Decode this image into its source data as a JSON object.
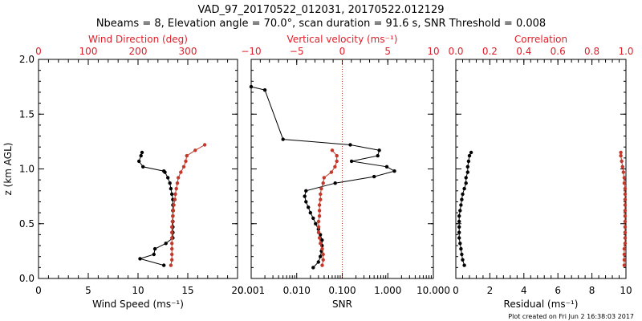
{
  "title_line1": "VAD_97_20170522_012031, 20170522.012129",
  "title_line2": "Nbeams = 8, Elevation angle = 70.0°, scan duration = 91.6 s, SNR Threshold = 0.008",
  "footer": "Plot created on Fri Jun  2 16:38:03 2017",
  "colors": {
    "black": "#000000",
    "red": "#c0392b",
    "red_text": "#e0202a",
    "zero_line": "#c0392b"
  },
  "chart_data": [
    {
      "type": "line",
      "panel": "left",
      "ylabel": "z (km AGL)",
      "ylim": [
        0,
        2
      ],
      "ytick_labels": [
        "0.0",
        "0.5",
        "1.0",
        "1.5",
        "2.0"
      ],
      "bottom_axis": {
        "label": "Wind Speed (ms⁻¹)",
        "lim": [
          0,
          20
        ],
        "tick_labels": [
          "0",
          "5",
          "10",
          "15",
          "20"
        ]
      },
      "top_axis": {
        "label": "Wind Direction (deg)",
        "lim": [
          0,
          400
        ],
        "tick_labels": [
          "0",
          "100",
          "200",
          "300"
        ]
      },
      "series": [
        {
          "axis": "bottom",
          "color": "black",
          "x": [
            12.6,
            10.2,
            11.6,
            11.7,
            12.8,
            13.5,
            13.5,
            13.5,
            13.5,
            13.5,
            13.5,
            13.5,
            13.5,
            13.4,
            13.3,
            13.2,
            13.0,
            12.7,
            12.6,
            10.5,
            10.1,
            10.3,
            10.4
          ],
          "y": [
            0.12,
            0.18,
            0.22,
            0.27,
            0.32,
            0.37,
            0.42,
            0.47,
            0.52,
            0.57,
            0.62,
            0.67,
            0.72,
            0.77,
            0.82,
            0.87,
            0.92,
            0.97,
            0.98,
            1.02,
            1.07,
            1.12,
            1.15
          ]
        },
        {
          "axis": "top",
          "color": "red",
          "x": [
            266,
            268,
            268,
            268,
            268,
            268,
            268,
            268,
            269,
            270,
            271,
            272,
            274,
            275,
            277,
            279,
            281,
            286,
            292,
            296,
            298,
            315,
            334
          ],
          "y": [
            0.12,
            0.17,
            0.22,
            0.27,
            0.32,
            0.37,
            0.42,
            0.47,
            0.52,
            0.57,
            0.62,
            0.67,
            0.72,
            0.77,
            0.82,
            0.87,
            0.92,
            0.97,
            1.02,
            1.07,
            1.12,
            1.17,
            1.22
          ]
        }
      ]
    },
    {
      "type": "line",
      "panel": "middle",
      "ylim": [
        0,
        2
      ],
      "bottom_axis": {
        "label": "SNR",
        "lim": [
          0.001,
          10
        ],
        "scale": "log",
        "tick_labels": [
          "0.001",
          "0.010",
          "0.100",
          "1.000",
          "10.000"
        ]
      },
      "top_axis": {
        "label": "Vertical velocity (ms⁻¹)",
        "lim": [
          -10,
          10
        ],
        "tick_labels": [
          "−10",
          "−5",
          "0",
          "5",
          "10"
        ],
        "zero_line": true
      },
      "series": [
        {
          "axis": "bottom",
          "color": "black",
          "x": [
            0.023,
            0.03,
            0.033,
            0.035,
            0.036,
            0.036,
            0.033,
            0.03,
            0.026,
            0.023,
            0.02,
            0.018,
            0.016,
            0.015,
            0.016,
            0.07,
            0.5,
            1.4,
            0.95,
            0.16,
            0.6,
            0.65,
            0.15,
            0.005,
            0.002,
            0.001
          ],
          "y": [
            0.1,
            0.15,
            0.2,
            0.25,
            0.3,
            0.35,
            0.4,
            0.45,
            0.5,
            0.55,
            0.6,
            0.65,
            0.7,
            0.75,
            0.8,
            0.87,
            0.93,
            0.98,
            1.02,
            1.07,
            1.12,
            1.17,
            1.22,
            1.27,
            1.72,
            1.75
          ]
        },
        {
          "axis": "top",
          "color": "red",
          "x": [
            -2.2,
            -2.1,
            -2.1,
            -2.2,
            -2.4,
            -2.5,
            -2.6,
            -2.6,
            -2.6,
            -2.5,
            -2.5,
            -2.5,
            -2.4,
            -2.4,
            -2.3,
            -2.1,
            -2.0,
            -1.2,
            -0.8,
            -0.6,
            -0.6,
            -1.1
          ],
          "y": [
            0.12,
            0.17,
            0.22,
            0.27,
            0.32,
            0.37,
            0.42,
            0.47,
            0.52,
            0.57,
            0.62,
            0.67,
            0.72,
            0.77,
            0.82,
            0.87,
            0.92,
            0.97,
            1.02,
            1.07,
            1.12,
            1.17
          ]
        }
      ]
    },
    {
      "type": "line",
      "panel": "right",
      "ylim": [
        0,
        2
      ],
      "bottom_axis": {
        "label": "Residual (ms⁻¹)",
        "lim": [
          0,
          10
        ],
        "tick_labels": [
          "0",
          "2",
          "4",
          "6",
          "8",
          "10"
        ]
      },
      "top_axis": {
        "label": "Correlation",
        "lim": [
          0,
          1
        ],
        "tick_labels": [
          "0.0",
          "0.2",
          "0.4",
          "0.6",
          "0.8",
          "1.0"
        ]
      },
      "series": [
        {
          "axis": "bottom",
          "color": "black",
          "x": [
            0.5,
            0.4,
            0.35,
            0.3,
            0.25,
            0.2,
            0.2,
            0.2,
            0.2,
            0.2,
            0.25,
            0.3,
            0.35,
            0.4,
            0.5,
            0.6,
            0.6,
            0.7,
            0.7,
            0.75,
            0.8,
            0.9
          ],
          "y": [
            0.12,
            0.17,
            0.22,
            0.27,
            0.32,
            0.37,
            0.42,
            0.47,
            0.52,
            0.57,
            0.62,
            0.67,
            0.72,
            0.77,
            0.82,
            0.87,
            0.92,
            0.97,
            1.02,
            1.07,
            1.12,
            1.15
          ]
        },
        {
          "axis": "top",
          "color": "red",
          "x": [
            0.99,
            0.99,
            0.99,
            0.99,
            0.995,
            0.995,
            0.995,
            0.995,
            0.995,
            0.995,
            0.995,
            0.995,
            0.995,
            0.995,
            0.995,
            0.99,
            0.99,
            0.985,
            0.98,
            0.975,
            0.97,
            0.97
          ],
          "y": [
            0.12,
            0.17,
            0.22,
            0.27,
            0.32,
            0.37,
            0.42,
            0.47,
            0.52,
            0.57,
            0.62,
            0.67,
            0.72,
            0.77,
            0.82,
            0.87,
            0.92,
            0.97,
            1.02,
            1.07,
            1.12,
            1.15
          ]
        }
      ]
    }
  ]
}
